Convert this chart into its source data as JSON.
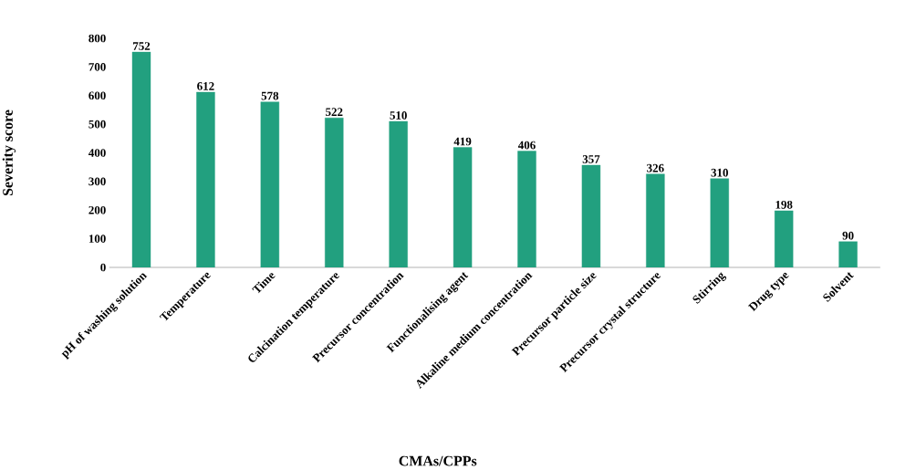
{
  "chart_data": {
    "type": "bar",
    "xlabel": "CMAs/CPPs",
    "ylabel": "Severity score",
    "categories": [
      "pH of washing solution",
      "Temperature",
      "Time",
      "Calcination temperature",
      "Precursor concentration",
      "Functionalising agent",
      "Alkaline medium concentration",
      "Precursor particle size",
      "Precursor crystal structure",
      "Stirring",
      "Drug type",
      "Solvent"
    ],
    "values": [
      752,
      612,
      578,
      522,
      510,
      419,
      406,
      357,
      326,
      310,
      198,
      90
    ],
    "color": "#22a07f",
    "ylim": [
      0,
      800
    ],
    "yticks": [
      0,
      100,
      200,
      300,
      400,
      500,
      600,
      700,
      800
    ],
    "data_labels": true
  }
}
